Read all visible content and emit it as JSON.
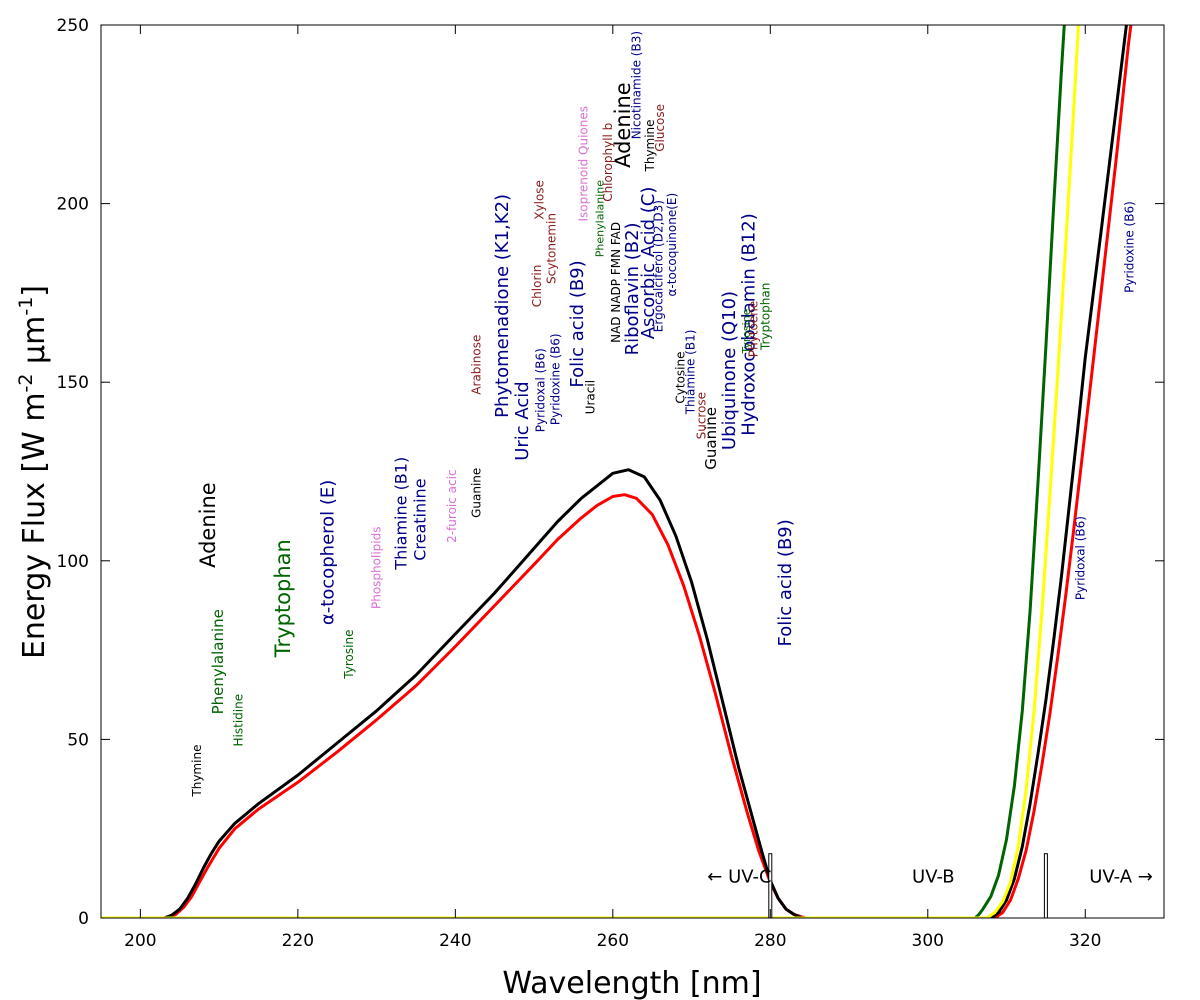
{
  "chart_data": {
    "type": "line",
    "title": "",
    "xlabel": "Wavelength [nm]",
    "ylabel_parts": {
      "base": "Energy Flux [W m",
      "sup1": "-2",
      "mid": " μm",
      "sup2": "-1",
      "end": "]"
    },
    "xlim": [
      195,
      330
    ],
    "ylim": [
      0,
      250
    ],
    "xticks": [
      200,
      220,
      240,
      260,
      280,
      300,
      320
    ],
    "yticks": [
      0,
      50,
      100,
      150,
      200,
      250
    ],
    "xtick_labels": [
      "200",
      "220",
      "240",
      "260",
      "280",
      "300",
      "320"
    ],
    "ytick_labels": [
      "0",
      "50",
      "100",
      "150",
      "200",
      "250"
    ],
    "series": [
      {
        "name": "black",
        "color": "#000000",
        "points": [
          [
            195,
            0
          ],
          [
            203,
            0
          ],
          [
            204,
            0.8
          ],
          [
            205,
            2.5
          ],
          [
            206,
            5.5
          ],
          [
            207,
            9.5
          ],
          [
            208,
            14
          ],
          [
            209,
            18
          ],
          [
            210,
            21.5
          ],
          [
            212,
            26.5
          ],
          [
            215,
            32
          ],
          [
            220,
            40
          ],
          [
            225,
            49
          ],
          [
            230,
            58
          ],
          [
            235,
            68
          ],
          [
            240,
            79.5
          ],
          [
            245,
            91
          ],
          [
            250,
            103.5
          ],
          [
            253,
            111
          ],
          [
            256,
            117.5
          ],
          [
            258,
            121
          ],
          [
            260,
            124.5
          ],
          [
            262,
            125.5
          ],
          [
            264,
            123.5
          ],
          [
            266,
            117
          ],
          [
            268,
            107
          ],
          [
            270,
            94
          ],
          [
            272,
            78
          ],
          [
            274,
            60
          ],
          [
            276,
            42
          ],
          [
            278,
            26
          ],
          [
            279,
            18
          ],
          [
            280,
            10.5
          ],
          [
            281,
            5.5
          ],
          [
            282,
            2.5
          ],
          [
            283,
            1
          ],
          [
            284,
            0
          ],
          [
            308,
            0
          ],
          [
            309,
            1.5
          ],
          [
            310,
            5
          ],
          [
            311,
            11
          ],
          [
            312,
            20
          ],
          [
            313,
            32
          ],
          [
            314,
            46
          ],
          [
            315,
            61
          ],
          [
            316,
            78
          ],
          [
            317,
            96
          ],
          [
            318,
            116
          ],
          [
            319,
            136
          ],
          [
            320,
            157
          ],
          [
            322,
            192
          ],
          [
            324,
            228
          ],
          [
            325.5,
            255
          ]
        ]
      },
      {
        "name": "red",
        "color": "#ff0000",
        "points": [
          [
            195,
            0
          ],
          [
            203.5,
            0
          ],
          [
            204.5,
            1
          ],
          [
            205.5,
            3
          ],
          [
            206.5,
            6
          ],
          [
            207.5,
            10
          ],
          [
            208.5,
            14
          ],
          [
            210,
            19.5
          ],
          [
            212,
            25
          ],
          [
            215,
            30.5
          ],
          [
            220,
            38
          ],
          [
            225,
            46.5
          ],
          [
            230,
            55.5
          ],
          [
            235,
            65
          ],
          [
            240,
            76
          ],
          [
            245,
            87.5
          ],
          [
            250,
            99
          ],
          [
            253,
            106
          ],
          [
            256,
            112
          ],
          [
            258,
            115.5
          ],
          [
            260,
            118
          ],
          [
            261.5,
            118.5
          ],
          [
            263,
            117.5
          ],
          [
            265,
            113
          ],
          [
            267,
            104.5
          ],
          [
            269,
            93
          ],
          [
            271,
            79
          ],
          [
            273,
            63
          ],
          [
            275,
            46
          ],
          [
            277,
            30
          ],
          [
            278.5,
            19
          ],
          [
            280,
            10
          ],
          [
            281,
            5.5
          ],
          [
            282,
            2.5
          ],
          [
            283,
            1
          ],
          [
            284.5,
            0
          ],
          [
            308.5,
            0
          ],
          [
            309.5,
            1.5
          ],
          [
            310.5,
            5
          ],
          [
            311.5,
            11
          ],
          [
            312.5,
            19
          ],
          [
            313.5,
            30
          ],
          [
            314.5,
            43
          ],
          [
            315.5,
            57
          ],
          [
            316.5,
            73
          ],
          [
            317.5,
            90
          ],
          [
            318.5,
            108
          ],
          [
            319.5,
            127
          ],
          [
            320.5,
            146
          ],
          [
            322,
            175
          ],
          [
            324,
            214
          ],
          [
            325.5,
            245
          ],
          [
            326.2,
            257
          ]
        ]
      },
      {
        "name": "green",
        "color": "#006400",
        "points": [
          [
            195,
            0
          ],
          [
            306,
            0
          ],
          [
            306.5,
            1
          ],
          [
            307,
            2.5
          ],
          [
            308,
            6
          ],
          [
            309,
            12
          ],
          [
            310,
            22
          ],
          [
            311,
            37
          ],
          [
            312,
            58
          ],
          [
            313,
            86
          ],
          [
            314,
            122
          ],
          [
            315,
            160
          ],
          [
            316,
            200
          ],
          [
            317,
            238
          ],
          [
            317.5,
            256
          ]
        ]
      },
      {
        "name": "yellow",
        "color": "#ffff00",
        "points": [
          [
            195,
            0
          ],
          [
            307.5,
            0
          ],
          [
            308.5,
            1.5
          ],
          [
            309.5,
            4.5
          ],
          [
            310.5,
            10
          ],
          [
            311.5,
            20
          ],
          [
            312.5,
            36
          ],
          [
            313.5,
            58
          ],
          [
            314.5,
            86
          ],
          [
            315.5,
            118
          ],
          [
            316.5,
            152
          ],
          [
            317.5,
            188
          ],
          [
            318.5,
            225
          ],
          [
            319.3,
            256
          ]
        ]
      }
    ],
    "markers": [
      {
        "type": "bar",
        "x": 280,
        "height": 18
      },
      {
        "type": "bar",
        "x": 315,
        "height": 18
      }
    ],
    "annotations": [
      {
        "text": "← UV-C",
        "x": 272,
        "y": 10
      },
      {
        "text": "UV-B",
        "x": 298,
        "y": 10
      },
      {
        "text": "UV-A →",
        "x": 320.5,
        "y": 10
      }
    ],
    "molecules": [
      {
        "text": "Thymine",
        "x": 207.7,
        "y": 34,
        "color": "#000000",
        "size": 12
      },
      {
        "text": "Phenylalanine",
        "x": 210.5,
        "y": 57,
        "color": "#006400",
        "size": 15
      },
      {
        "text": "Histidine",
        "x": 213,
        "y": 48,
        "color": "#006400",
        "size": 12
      },
      {
        "text": "Adenine",
        "x": 209.5,
        "y": 98,
        "color": "#000000",
        "size": 21
      },
      {
        "text": "Tryptophan",
        "x": 219,
        "y": 73,
        "color": "#006400",
        "size": 21
      },
      {
        "text": "α-tocopherol (E)",
        "x": 224.5,
        "y": 82,
        "color": "#00008b",
        "size": 18
      },
      {
        "text": "Tyrosine",
        "x": 227,
        "y": 67,
        "color": "#006400",
        "size": 12
      },
      {
        "text": "Phospholipids",
        "x": 230.5,
        "y": 86.5,
        "color": "#da70d6",
        "size": 12
      },
      {
        "text": "Thiamine (B1)",
        "x": 233.8,
        "y": 97.5,
        "color": "#00008b",
        "size": 16
      },
      {
        "text": "Creatinine",
        "x": 236.2,
        "y": 100,
        "color": "#00008b",
        "size": 16
      },
      {
        "text": "2-furoic acic",
        "x": 240.1,
        "y": 105,
        "color": "#da70d6",
        "size": 12
      },
      {
        "text": "Guanine",
        "x": 243.2,
        "y": 112,
        "color": "#000000",
        "size": 12
      },
      {
        "text": "Arabinose",
        "x": 243.2,
        "y": 146.5,
        "color": "#8b1a1a",
        "size": 12
      },
      {
        "text": "Phytomenadione (K1,K2)",
        "x": 246.7,
        "y": 140,
        "color": "#00008b",
        "size": 18
      },
      {
        "text": "Uric Acid",
        "x": 249.2,
        "y": 128,
        "color": "#00008b",
        "size": 18
      },
      {
        "text": "Pyridoxal (B6)",
        "x": 251.3,
        "y": 136,
        "color": "#00008b",
        "size": 12
      },
      {
        "text": "Pyridoxine (B6)",
        "x": 253.2,
        "y": 138,
        "color": "#00008b",
        "size": 12
      },
      {
        "text": "Chlorin",
        "x": 250.9,
        "y": 171,
        "color": "#8b1a1a",
        "size": 12
      },
      {
        "text": "Scytonemin",
        "x": 252.7,
        "y": 177.5,
        "color": "#8b1a1a",
        "size": 12
      },
      {
        "text": "Xylose",
        "x": 251.2,
        "y": 195.5,
        "color": "#8b1a1a",
        "size": 12
      },
      {
        "text": "Folic acid (B9)",
        "x": 256.2,
        "y": 148.5,
        "color": "#00008b",
        "size": 18
      },
      {
        "text": "Isoprenoid Quiones",
        "x": 256.8,
        "y": 195,
        "color": "#da70d6",
        "size": 12
      },
      {
        "text": "Uracil",
        "x": 257.7,
        "y": 141,
        "color": "#000000",
        "size": 12
      },
      {
        "text": "Phenylalanine",
        "x": 258.8,
        "y": 185,
        "color": "#006400",
        "size": 11
      },
      {
        "text": "Chlorophyll b",
        "x": 259.9,
        "y": 200.5,
        "color": "#8b1a1a",
        "size": 12
      },
      {
        "text": "NAD NADP FMN FAD",
        "x": 260.9,
        "y": 161,
        "color": "#000000",
        "size": 12
      },
      {
        "text": "Adenine",
        "x": 262.2,
        "y": 210,
        "color": "#000000",
        "size": 21
      },
      {
        "text": "Riboflavin (B2)",
        "x": 263.2,
        "y": 157.5,
        "color": "#00008b",
        "size": 18
      },
      {
        "text": "Ascorbic Acid (C)",
        "x": 265.2,
        "y": 162,
        "color": "#00008b",
        "size": 18
      },
      {
        "text": "Nicotinamide (B3)",
        "x": 263.5,
        "y": 218,
        "color": "#00008b",
        "size": 12
      },
      {
        "text": "Ergocalciferol (D2,D3)",
        "x": 266.3,
        "y": 164,
        "color": "#00008b",
        "size": 12
      },
      {
        "text": "Thymine",
        "x": 265.2,
        "y": 209,
        "color": "#000000",
        "size": 12
      },
      {
        "text": "Glucose",
        "x": 266.5,
        "y": 214.5,
        "color": "#8b1a1a",
        "size": 12
      },
      {
        "text": "α-tocoquinone(E)",
        "x": 268,
        "y": 174,
        "color": "#00008b",
        "size": 12
      },
      {
        "text": "Cytosine",
        "x": 269.1,
        "y": 144,
        "color": "#000000",
        "size": 12
      },
      {
        "text": "Thiamine (B1)",
        "x": 270.4,
        "y": 141,
        "color": "#00008b",
        "size": 12
      },
      {
        "text": "Sucrose",
        "x": 271.8,
        "y": 134,
        "color": "#8b1a1a",
        "size": 12
      },
      {
        "text": "Guanine",
        "x": 273.1,
        "y": 125.5,
        "color": "#000000",
        "size": 15
      },
      {
        "text": "Ubiquinone (Q10)",
        "x": 275.5,
        "y": 131,
        "color": "#00008b",
        "size": 18
      },
      {
        "text": "Hydroxocobalamin (B12)",
        "x": 278,
        "y": 135,
        "color": "#00008b",
        "size": 18
      },
      {
        "text": "Tyrosine",
        "x": 277.4,
        "y": 158,
        "color": "#006400",
        "size": 11
      },
      {
        "text": "Phytoene",
        "x": 278.4,
        "y": 157,
        "color": "#8b1a1a",
        "size": 12
      },
      {
        "text": "Tryptophan",
        "x": 279.9,
        "y": 159,
        "color": "#006400",
        "size": 12
      },
      {
        "text": "Folic acid (B9)",
        "x": 282.6,
        "y": 76,
        "color": "#00008b",
        "size": 18
      },
      {
        "text": "Pyridoxal (B6)",
        "x": 319.9,
        "y": 89,
        "color": "#00008b",
        "size": 12
      },
      {
        "text": "Pyridoxine (B6)",
        "x": 326.1,
        "y": 175,
        "color": "#00008b",
        "size": 12
      }
    ]
  }
}
